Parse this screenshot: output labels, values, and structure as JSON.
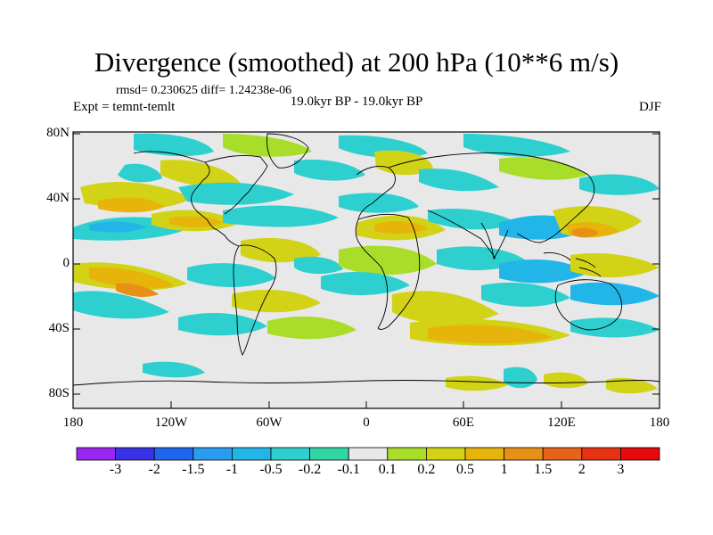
{
  "title": "Divergence (smoothed) at 200 hPa (10**6 m/s)",
  "stats": "rmsd= 0.230625 diff= 1.24238e-06",
  "left_label": "Expt = temnt-temlt",
  "center_label": "19.0kyr BP - 19.0kyr BP",
  "right_label": "DJF",
  "lat_labels": [
    "80N",
    "40N",
    "0",
    "40S",
    "80S"
  ],
  "lon_labels": [
    "180",
    "120W",
    "60W",
    "0",
    "60E",
    "120E",
    "180"
  ],
  "colorbar": {
    "labels": [
      "-3",
      "-2",
      "-1.5",
      "-1",
      "-0.5",
      "-0.2",
      "-0.1",
      "0.1",
      "0.2",
      "0.5",
      "1",
      "1.5",
      "2",
      "3"
    ],
    "colors": [
      "#9b26f0",
      "#3a32e6",
      "#1f66ee",
      "#2a9cf0",
      "#22b6e8",
      "#2ed0cf",
      "#32d6a4",
      "#e8e8e8",
      "#a8de2a",
      "#d2d216",
      "#e6b40a",
      "#e69016",
      "#e6641a",
      "#e63212",
      "#e60a0a"
    ]
  },
  "map": {
    "land_color": "#e8e8e8",
    "field_colors": {
      "neg_weak": "#32d6a4",
      "neg_mid": "#2ed0cf",
      "neg_strong": "#22b6e8",
      "pos_weak": "#a8de2a",
      "pos_mid": "#d2d216",
      "pos_strong": "#e6b40a",
      "pos_vstrong": "#e69016"
    }
  }
}
